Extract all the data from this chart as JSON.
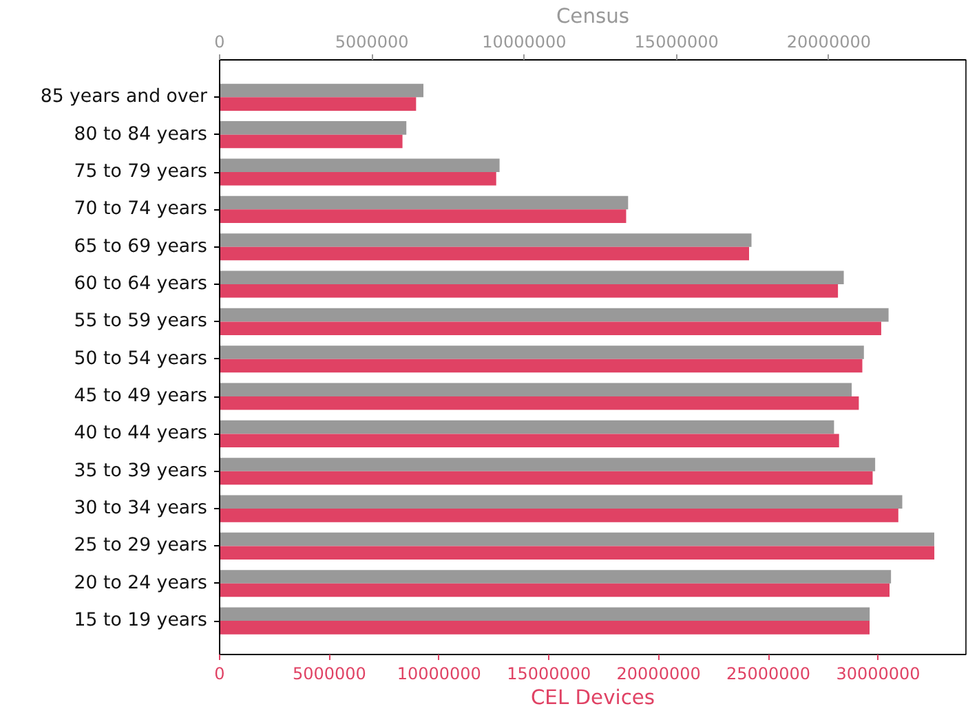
{
  "chart_data": {
    "type": "bar",
    "orientation": "horizontal",
    "categories": [
      "85 years and over",
      "80 to 84 years",
      "75 to 79 years",
      "70 to 74 years",
      "65 to 69 years",
      "60 to 64 years",
      "55 to 59 years",
      "50 to 54 years",
      "45 to 49 years",
      "40 to 44 years",
      "35 to 39 years",
      "30 to 34 years",
      "25 to 29 years",
      "20 to 24 years",
      "15 to 19 years"
    ],
    "series": [
      {
        "color": "#999999",
        "axis": "x2",
        "values": [
          6690000,
          6130000,
          9190000,
          13410000,
          17460000,
          20490000,
          21960000,
          21150000,
          20750000,
          20170000,
          21520000,
          22410000,
          23460000,
          22040000,
          21340000
        ]
      },
      {
        "color": "#e04264",
        "values": [
          8950000,
          8330000,
          12600000,
          18520000,
          24120000,
          28170000,
          30140000,
          29280000,
          29120000,
          28220000,
          29750000,
          30920000,
          32560000,
          30520000,
          29610000
        ]
      }
    ],
    "xlabel": "CEL Devices",
    "x2label": "Census",
    "xlim": [
      0,
      34000000
    ],
    "xticks": [
      0,
      5000000,
      10000000,
      15000000,
      20000000,
      25000000,
      30000000
    ],
    "x2lim": [
      0,
      24500000
    ],
    "x2ticks": [
      0,
      5000000,
      10000000,
      15000000,
      20000000
    ],
    "grid": false
  }
}
